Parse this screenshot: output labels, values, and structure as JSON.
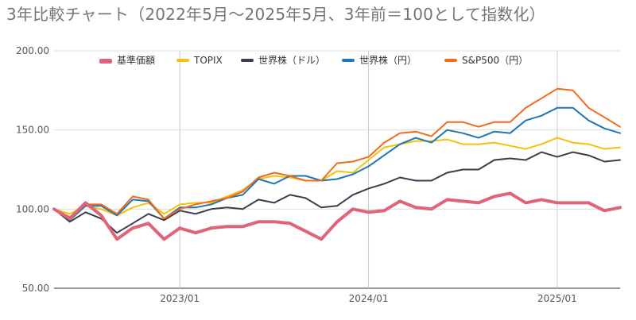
{
  "chart_data": {
    "type": "line",
    "title": "3年比較チャート（2022年5月～2025年5月、3年前＝100として指数化）",
    "xlabel": "",
    "ylabel": "",
    "ylim": [
      50,
      200
    ],
    "yticks": [
      "200.00",
      "150.00",
      "100.00",
      "50.00"
    ],
    "xticks": [
      "2023/01",
      "2024/01",
      "2025/01"
    ],
    "grid": "vertical gridlines at year ticks",
    "legend_position": "top",
    "x": [
      "2022/05",
      "2022/06",
      "2022/07",
      "2022/08",
      "2022/09",
      "2022/10",
      "2022/11",
      "2022/12",
      "2023/01",
      "2023/02",
      "2023/03",
      "2023/04",
      "2023/05",
      "2023/06",
      "2023/07",
      "2023/08",
      "2023/09",
      "2023/10",
      "2023/11",
      "2023/12",
      "2024/01",
      "2024/02",
      "2024/03",
      "2024/04",
      "2024/05",
      "2024/06",
      "2024/07",
      "2024/08",
      "2024/09",
      "2024/10",
      "2024/11",
      "2024/12",
      "2025/01",
      "2025/02",
      "2025/03",
      "2025/04",
      "2025/05"
    ],
    "series": [
      {
        "name": "基準価額",
        "color": "#e06377",
        "width": 4,
        "values": [
          100,
          94,
          104,
          96,
          81,
          88,
          91,
          81,
          88,
          85,
          88,
          89,
          89,
          92,
          92,
          91,
          86,
          81,
          92,
          100,
          98,
          99,
          105,
          101,
          100,
          106,
          105,
          104,
          108,
          110,
          104,
          106,
          104,
          104,
          104,
          99,
          101
        ]
      },
      {
        "name": "TOPIX",
        "color": "#f4c20d",
        "width": 2,
        "values": [
          100,
          97,
          102,
          100,
          96,
          101,
          104,
          97,
          103,
          104,
          104,
          108,
          112,
          119,
          121,
          120,
          118,
          118,
          124,
          123,
          131,
          139,
          141,
          143,
          143,
          144,
          141,
          141,
          142,
          140,
          138,
          141,
          145,
          142,
          141,
          138,
          139
        ]
      },
      {
        "name": "世界株（ドル）",
        "color": "#3c3c4e",
        "width": 2,
        "values": [
          100,
          92,
          98,
          94,
          85,
          91,
          97,
          93,
          99,
          97,
          100,
          101,
          100,
          106,
          104,
          109,
          107,
          101,
          102,
          109,
          113,
          116,
          120,
          118,
          118,
          123,
          125,
          125,
          131,
          132,
          131,
          136,
          133,
          136,
          134,
          130,
          131
        ]
      },
      {
        "name": "世界株（円）",
        "color": "#1f77b4",
        "width": 2,
        "values": [
          100,
          93,
          102,
          102,
          96,
          106,
          105,
          94,
          101,
          101,
          103,
          107,
          109,
          119,
          116,
          121,
          121,
          118,
          119,
          122,
          127,
          134,
          141,
          145,
          142,
          150,
          148,
          145,
          149,
          148,
          156,
          159,
          164,
          164,
          156,
          151,
          148
        ]
      },
      {
        "name": "S&P500（円）",
        "color": "#f26b1d",
        "width": 2,
        "values": [
          100,
          95,
          103,
          103,
          97,
          108,
          106,
          94,
          100,
          103,
          105,
          107,
          111,
          120,
          123,
          121,
          118,
          118,
          129,
          130,
          133,
          142,
          148,
          149,
          146,
          155,
          155,
          152,
          155,
          155,
          164,
          170,
          176,
          175,
          164,
          158,
          152
        ]
      }
    ]
  }
}
